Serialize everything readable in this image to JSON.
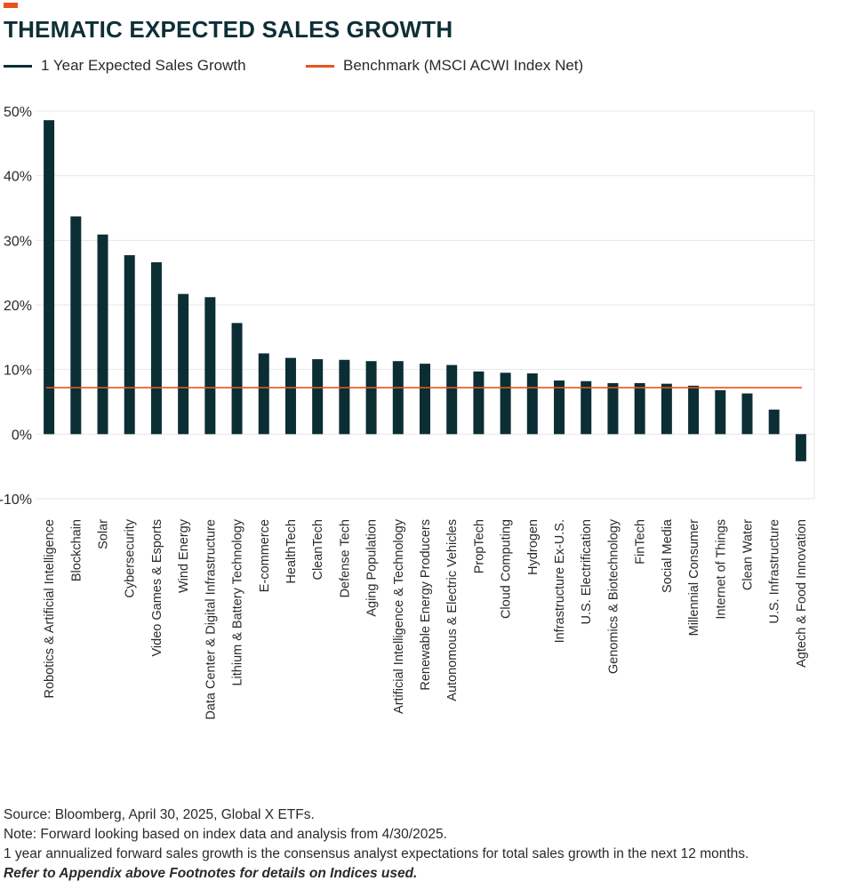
{
  "header": {
    "title": "THEMATIC EXPECTED SALES GROWTH"
  },
  "colors": {
    "accent": "#e8541e",
    "bar": "#0b2e34",
    "benchmark": "#e8541e",
    "grid": "#e6e6e6"
  },
  "legend": {
    "items": [
      {
        "label": "1 Year Expected Sales Growth",
        "color": "#0b2e34"
      },
      {
        "label": "Benchmark (MSCI ACWI Index Net)",
        "color": "#e8541e"
      }
    ]
  },
  "chart_data": {
    "type": "bar",
    "categories": [
      "Robotics & Artificial Intelligence",
      "Blockchain",
      "Solar",
      "Cybersecurity",
      "Video Games & Esports",
      "Wind Energy",
      "Data Center & Digital Infrastructure",
      "Lithium & Battery Technology",
      "E-commerce",
      "HealthTech",
      "CleanTech",
      "Defense Tech",
      "Aging Population",
      "Artificial Intelligence & Technology",
      "Renewable Energy Producers",
      "Autonomous & Electric Vehicles",
      "PropTech",
      "Cloud Computing",
      "Hydrogen",
      "Infrastructure Ex-U.S.",
      "U.S. Electrification",
      "Genomics & Biotechnology",
      "FinTech",
      "Social Media",
      "Millennial Consumer",
      "Internet of Things",
      "Clean Water",
      "U.S. Infrastructure",
      "Agtech & Food Innovation"
    ],
    "series": [
      {
        "name": "1 Year Expected Sales Growth",
        "values": [
          48.6,
          33.7,
          30.9,
          27.7,
          26.6,
          21.7,
          21.2,
          17.2,
          12.5,
          11.8,
          11.6,
          11.5,
          11.3,
          11.3,
          10.9,
          10.7,
          9.7,
          9.5,
          9.4,
          8.3,
          8.2,
          7.9,
          7.9,
          7.8,
          7.5,
          6.8,
          6.3,
          3.8,
          -4.2
        ]
      }
    ],
    "benchmark": {
      "name": "Benchmark (MSCI ACWI Index Net)",
      "value": 7.2
    },
    "ylim": [
      -10,
      50
    ],
    "yticks": [
      50,
      40,
      30,
      20,
      10,
      0,
      -10
    ],
    "ytick_labels": [
      "50%",
      "40%",
      "30%",
      "20%",
      "10%",
      "0%",
      "-10%"
    ],
    "grid": true,
    "legend_position": "top-left"
  },
  "footer": {
    "source": "Source: Bloomberg, April 30, 2025, Global X ETFs.",
    "note": "Note: Forward looking based on index data and analysis from 4/30/2025.",
    "definition": "1 year annualized forward sales growth is the consensus analyst expectations for total sales growth in the next 12 months.",
    "reference": "Refer to Appendix above Footnotes for details on Indices used."
  }
}
